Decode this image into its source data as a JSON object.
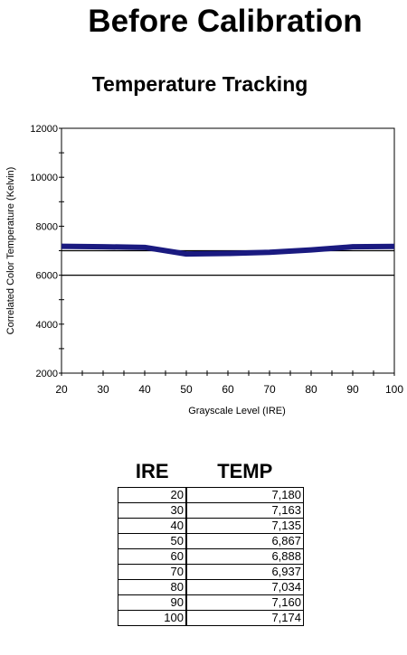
{
  "header": {
    "title": "Before Calibration"
  },
  "chart_data": {
    "type": "line",
    "title": "Temperature Tracking",
    "xlabel": "Grayscale Level (IRE)",
    "ylabel": "Correlated Color Temperature (Kelvin)",
    "xlim": [
      20,
      100
    ],
    "ylim": [
      2000,
      12000
    ],
    "x_ticks": [
      20,
      30,
      40,
      50,
      60,
      70,
      80,
      90,
      100
    ],
    "y_ticks": [
      2000,
      4000,
      6000,
      8000,
      10000,
      12000
    ],
    "reference_lines": [
      6000,
      7000
    ],
    "series": [
      {
        "x": [
          20,
          30,
          40,
          50,
          60,
          70,
          80,
          90,
          100
        ],
        "values": [
          7180,
          7163,
          7135,
          6867,
          6888,
          6937,
          7034,
          7160,
          7174
        ],
        "color": "#1a1a80"
      }
    ],
    "grid": false
  },
  "table": {
    "headers": [
      "IRE",
      "TEMP"
    ],
    "rows": [
      [
        "20",
        "7,180"
      ],
      [
        "30",
        "7,163"
      ],
      [
        "40",
        "7,135"
      ],
      [
        "50",
        "6,867"
      ],
      [
        "60",
        "6,888"
      ],
      [
        "70",
        "6,937"
      ],
      [
        "80",
        "7,034"
      ],
      [
        "90",
        "7,160"
      ],
      [
        "100",
        "7,174"
      ]
    ]
  }
}
